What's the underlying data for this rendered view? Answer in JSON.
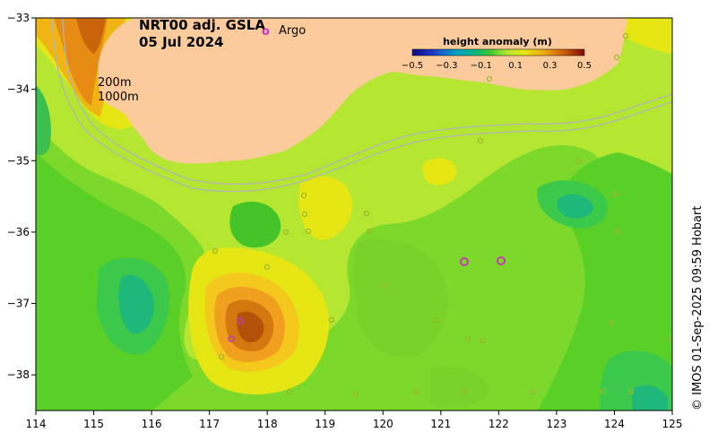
{
  "map": {
    "product": "NRT00 adj. GSLA",
    "date": "05 Jul 2024",
    "legend_argo": "Argo",
    "argo_symbol": "o",
    "contour_labels": [
      "200m",
      "1000m"
    ],
    "credit": "© IMOS 01-Sep-2025 09:59 Hobart",
    "x_ticks": [
      "114",
      "115",
      "116",
      "117",
      "118",
      "119",
      "120",
      "121",
      "122",
      "123",
      "124",
      "125"
    ],
    "y_ticks": [
      "−33",
      "−34",
      "−35",
      "−36",
      "−37",
      "−38"
    ],
    "lon_range": [
      114,
      125
    ],
    "lat_range": [
      -38.5,
      -33
    ]
  },
  "colorbar": {
    "title": "height anomaly (m)",
    "ticks": [
      "−0.5",
      "−0.3",
      "−0.1",
      "0.1",
      "0.3",
      "0.5"
    ],
    "range": [
      -0.5,
      0.5
    ]
  },
  "colors": {
    "land": "#FBCB9B",
    "ocean_base": "#B4E632",
    "strong_positive": "#C05A0A",
    "strong_negative": "#12B486",
    "argo_marker": "#C43CB2",
    "isobath": "#B4B4B4"
  }
}
